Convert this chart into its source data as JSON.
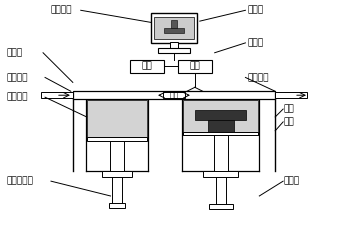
{
  "labels": {
    "computer": "计算机",
    "laser_beam": "激光束",
    "laser": "激光",
    "mirror": "振镜",
    "scraper": "刮板",
    "work_box": "工作箱",
    "three_d": "三维造型",
    "protect_in": "保护气进",
    "protect_out": "保护气出",
    "powder": "待用粉末",
    "part": "制件",
    "base_plate": "基板",
    "feed_elevator": "送粉升降器",
    "elevator": "升降器"
  },
  "fontsize": 6.5,
  "lw": 0.7
}
